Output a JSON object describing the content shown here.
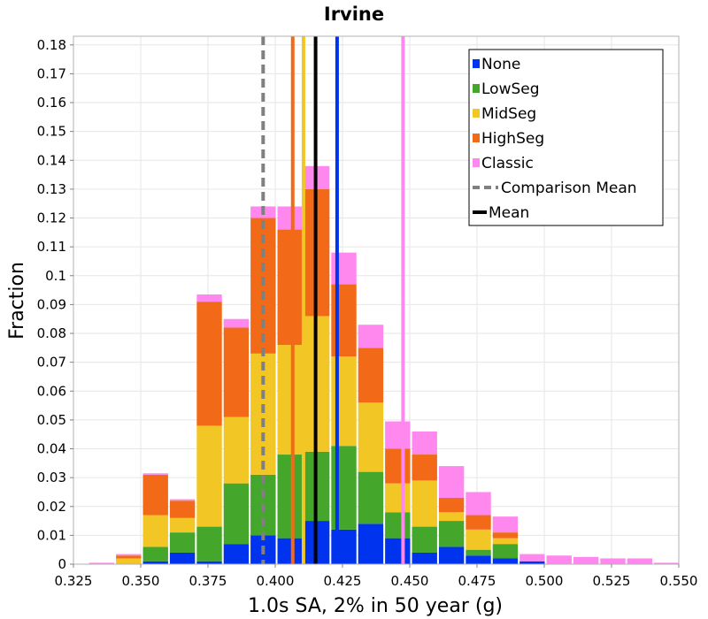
{
  "chart_data": {
    "type": "bar",
    "stacked": true,
    "title": "Irvine",
    "xlabel": "1.0s SA, 2% in 50 year (g)",
    "ylabel": "Fraction",
    "xlim": [
      0.325,
      0.55
    ],
    "ylim": [
      0,
      0.183
    ],
    "bin_width": 0.01,
    "x_ticks": [
      "0.325",
      "0.350",
      "0.375",
      "0.400",
      "0.425",
      "0.450",
      "0.475",
      "0.500",
      "0.525",
      "0.550"
    ],
    "y_ticks": [
      "0",
      "0.01",
      "0.02",
      "0.03",
      "0.04",
      "0.05",
      "0.06",
      "0.07",
      "0.08",
      "0.09",
      "0.1",
      "0.11",
      "0.12",
      "0.13",
      "0.14",
      "0.15",
      "0.16",
      "0.17",
      "0.18"
    ],
    "grid": true,
    "legend_position": "top-right",
    "bin_centers": [
      0.3255,
      0.3355,
      0.3455,
      0.3555,
      0.3655,
      0.3755,
      0.3855,
      0.3955,
      0.4055,
      0.4155,
      0.4255,
      0.4355,
      0.4455,
      0.4555,
      0.4655,
      0.4755,
      0.4855,
      0.4955,
      0.5055,
      0.5155,
      0.5255,
      0.5355,
      0.5455
    ],
    "series": [
      {
        "name": "None",
        "color": "#0033ee",
        "values": [
          0,
          0,
          0,
          0.001,
          0.004,
          0.001,
          0.007,
          0.01,
          0.009,
          0.015,
          0.012,
          0.014,
          0.009,
          0.004,
          0.006,
          0.003,
          0.002,
          0.001,
          0,
          0,
          0,
          0,
          0
        ]
      },
      {
        "name": "LowSeg",
        "color": "#44a62a",
        "values": [
          0,
          0,
          0,
          0.005,
          0.007,
          0.012,
          0.021,
          0.021,
          0.029,
          0.024,
          0.029,
          0.018,
          0.009,
          0.009,
          0.009,
          0.002,
          0.005,
          0,
          0,
          0,
          0,
          0,
          0
        ]
      },
      {
        "name": "MidSeg",
        "color": "#f2c624",
        "values": [
          0,
          0,
          0.002,
          0.011,
          0.005,
          0.035,
          0.023,
          0.042,
          0.038,
          0.047,
          0.031,
          0.024,
          0.01,
          0.016,
          0.003,
          0.007,
          0.002,
          0,
          0,
          0,
          0,
          0,
          0
        ]
      },
      {
        "name": "HighSeg",
        "color": "#f26a18",
        "values": [
          0,
          0,
          0.001,
          0.014,
          0.006,
          0.043,
          0.031,
          0.047,
          0.04,
          0.044,
          0.025,
          0.019,
          0.012,
          0.009,
          0.005,
          0.005,
          0.002,
          0,
          0,
          0,
          0,
          0,
          0
        ]
      },
      {
        "name": "Classic",
        "color": "#ff88ee",
        "values": [
          0,
          0.0005,
          0.0005,
          0.0005,
          0.0005,
          0.0025,
          0.003,
          0.004,
          0.008,
          0.008,
          0.011,
          0.008,
          0.0095,
          0.008,
          0.011,
          0.008,
          0.0055,
          0.0025,
          0.003,
          0.0025,
          0.002,
          0.002,
          0.0005
        ]
      }
    ],
    "vlines": [
      {
        "name": "Comparison Mean",
        "x": 0.3955,
        "color": "#808080",
        "style": "dashed"
      },
      {
        "name": "Mean",
        "x": 0.415,
        "color": "#000000",
        "style": "solid"
      },
      {
        "name": "None",
        "x": 0.423,
        "color": "#0033ee",
        "style": "solid"
      },
      {
        "name": "HighSeg",
        "x": 0.4065,
        "color": "#f26a18",
        "style": "solid"
      },
      {
        "name": "MidSeg",
        "x": 0.4105,
        "color": "#f2c624",
        "style": "solid"
      },
      {
        "name": "Classic",
        "x": 0.4475,
        "color": "#ff88ee",
        "style": "solid"
      }
    ],
    "legend": [
      {
        "label": "None",
        "color": "#0033ee",
        "kind": "square"
      },
      {
        "label": "LowSeg",
        "color": "#44a62a",
        "kind": "square"
      },
      {
        "label": "MidSeg",
        "color": "#f2c624",
        "kind": "square"
      },
      {
        "label": "HighSeg",
        "color": "#f26a18",
        "kind": "square"
      },
      {
        "label": "Classic",
        "color": "#ff88ee",
        "kind": "square"
      },
      {
        "label": "Comparison Mean",
        "color": "#808080",
        "kind": "dashed"
      },
      {
        "label": "Mean",
        "color": "#000000",
        "kind": "solid"
      }
    ]
  }
}
